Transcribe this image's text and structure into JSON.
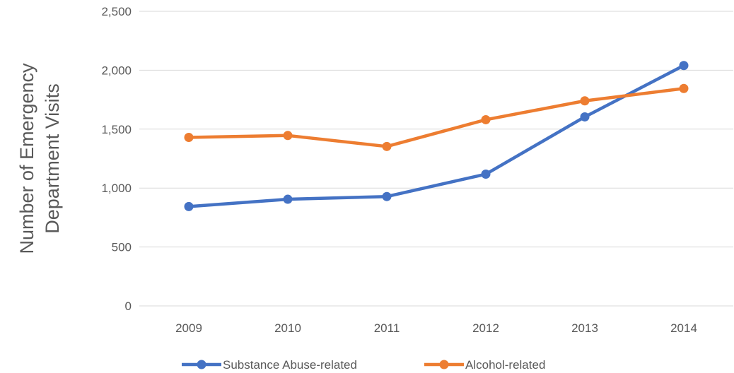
{
  "chart_data": {
    "type": "line",
    "title": "",
    "xlabel": "",
    "ylabel_lines": [
      "Number of Emergency",
      "Department Visits"
    ],
    "categories": [
      "2009",
      "2010",
      "2011",
      "2012",
      "2013",
      "2014"
    ],
    "ylim": [
      0,
      2500
    ],
    "yticks": [
      0,
      500,
      1000,
      1500,
      2000,
      2500
    ],
    "ytick_labels": [
      "0",
      "500",
      "1,000",
      "1,500",
      "2,000",
      "2,500"
    ],
    "grid": true,
    "legend_position": "bottom",
    "series": [
      {
        "name": "Substance Abuse-related",
        "color": "#4472C4",
        "values": [
          843,
          905,
          928,
          1118,
          1604,
          2040
        ]
      },
      {
        "name": "Alcohol-related",
        "color": "#ED7D31",
        "values": [
          1430,
          1446,
          1353,
          1580,
          1740,
          1845
        ]
      }
    ]
  }
}
